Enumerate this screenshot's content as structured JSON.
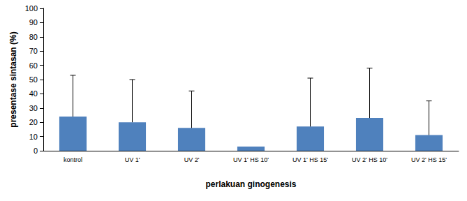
{
  "chart_data": {
    "type": "bar",
    "x_label": "perlakuan ginogenesis",
    "y_label": "presentase sintasan (%)",
    "categories": [
      "kontrol",
      "UV 1'",
      "UV 2'",
      "UV 1' HS 10'",
      "UV 1' HS 15'",
      "UV 2' HS 10'",
      "UV 2' HS 15'"
    ],
    "values": [
      24,
      20,
      16,
      3,
      17,
      23,
      11
    ],
    "errors": [
      29,
      30,
      26,
      null,
      34,
      35,
      24
    ],
    "color": "#4f81bd",
    "ylim": [
      0,
      100
    ],
    "yticks": [
      0,
      10,
      20,
      30,
      40,
      50,
      60,
      70,
      80,
      90,
      100
    ],
    "grid": false
  }
}
